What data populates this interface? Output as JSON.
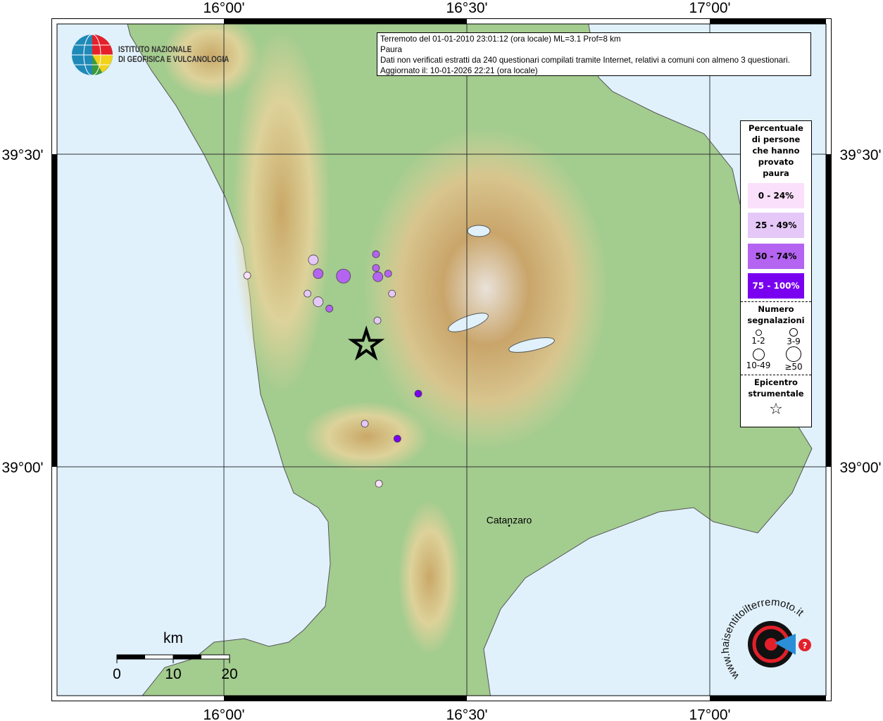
{
  "info_box": {
    "line1": "Terremoto del 01-01-2010 23:01:12 (ora locale) ML=3.1 Prof=8 km",
    "line2": "Paura",
    "line3": "Dati non verificati estratti da 240 questionari compilati tramite Internet, relativi a comuni con almeno 3 questionari.",
    "line4": "Aggiornato il: 10-01-2026 22:21 (ora locale)"
  },
  "logos": {
    "ingv_line1": "ISTITUTO NAZIONALE",
    "ingv_line2": "DI GEOFISICA E VULCANOLOGIA",
    "hsit": "www.haisentitoilterremoto.it"
  },
  "axes": {
    "lon_ticks": [
      "16°00'",
      "16°30'",
      "17°00'"
    ],
    "lat_ticks": [
      "39°30'",
      "39°00'"
    ]
  },
  "legend": {
    "title": [
      "Percentuale",
      "di persone",
      "che hanno",
      "provato",
      "paura"
    ],
    "classes": [
      {
        "label": "0 - 24%",
        "color": "#fbe0fb",
        "text_color": "#000000"
      },
      {
        "label": "25 - 49%",
        "color": "#e5c8f8",
        "text_color": "#000000"
      },
      {
        "label": "50 - 74%",
        "color": "#b464f0",
        "text_color": "#000000"
      },
      {
        "label": "75 - 100%",
        "color": "#7a00f0",
        "text_color": "#ffffff"
      }
    ],
    "count_title": [
      "Numero",
      "segnalazioni"
    ],
    "count_classes": [
      "1-2",
      "3-9",
      "10-49",
      "≥50"
    ],
    "epicenter_title": [
      "Epicentro",
      "strumentale"
    ]
  },
  "scale_bar": {
    "unit": "km",
    "labels": [
      "0",
      "10",
      "20"
    ]
  },
  "places": [
    {
      "name": "Catanzaro",
      "lon": 16.587,
      "lat": 38.907
    }
  ],
  "epicenter": {
    "lon": 16.293,
    "lat": 39.195
  },
  "observations": [
    {
      "lon": 16.048,
      "lat": 39.306,
      "class": 0,
      "count": "3-9"
    },
    {
      "lon": 16.184,
      "lat": 39.331,
      "class": 1,
      "count": "10-49"
    },
    {
      "lon": 16.194,
      "lat": 39.309,
      "class": 2,
      "count": "10-49"
    },
    {
      "lon": 16.246,
      "lat": 39.305,
      "class": 2,
      "count": "≥50"
    },
    {
      "lon": 16.313,
      "lat": 39.34,
      "class": 2,
      "count": "3-9"
    },
    {
      "lon": 16.313,
      "lat": 39.318,
      "class": 2,
      "count": "3-9"
    },
    {
      "lon": 16.317,
      "lat": 39.304,
      "class": 2,
      "count": "10-49"
    },
    {
      "lon": 16.338,
      "lat": 39.309,
      "class": 2,
      "count": "3-9"
    },
    {
      "lon": 16.172,
      "lat": 39.277,
      "class": 1,
      "count": "3-9"
    },
    {
      "lon": 16.194,
      "lat": 39.264,
      "class": 1,
      "count": "10-49"
    },
    {
      "lon": 16.217,
      "lat": 39.253,
      "class": 2,
      "count": "3-9"
    },
    {
      "lon": 16.346,
      "lat": 39.277,
      "class": 1,
      "count": "3-9"
    },
    {
      "lon": 16.316,
      "lat": 39.234,
      "class": 1,
      "count": "3-9"
    },
    {
      "lon": 16.4,
      "lat": 39.117,
      "class": 3,
      "count": "3-9"
    },
    {
      "lon": 16.29,
      "lat": 39.069,
      "class": 1,
      "count": "3-9"
    },
    {
      "lon": 16.357,
      "lat": 39.045,
      "class": 3,
      "count": "3-9"
    },
    {
      "lon": 16.319,
      "lat": 38.973,
      "class": 0,
      "count": "3-9"
    }
  ],
  "colors": {
    "sea": "#e0f1fc",
    "land": "#9ec98c",
    "mountain": "#c09a58",
    "epicenter": "#000000"
  }
}
